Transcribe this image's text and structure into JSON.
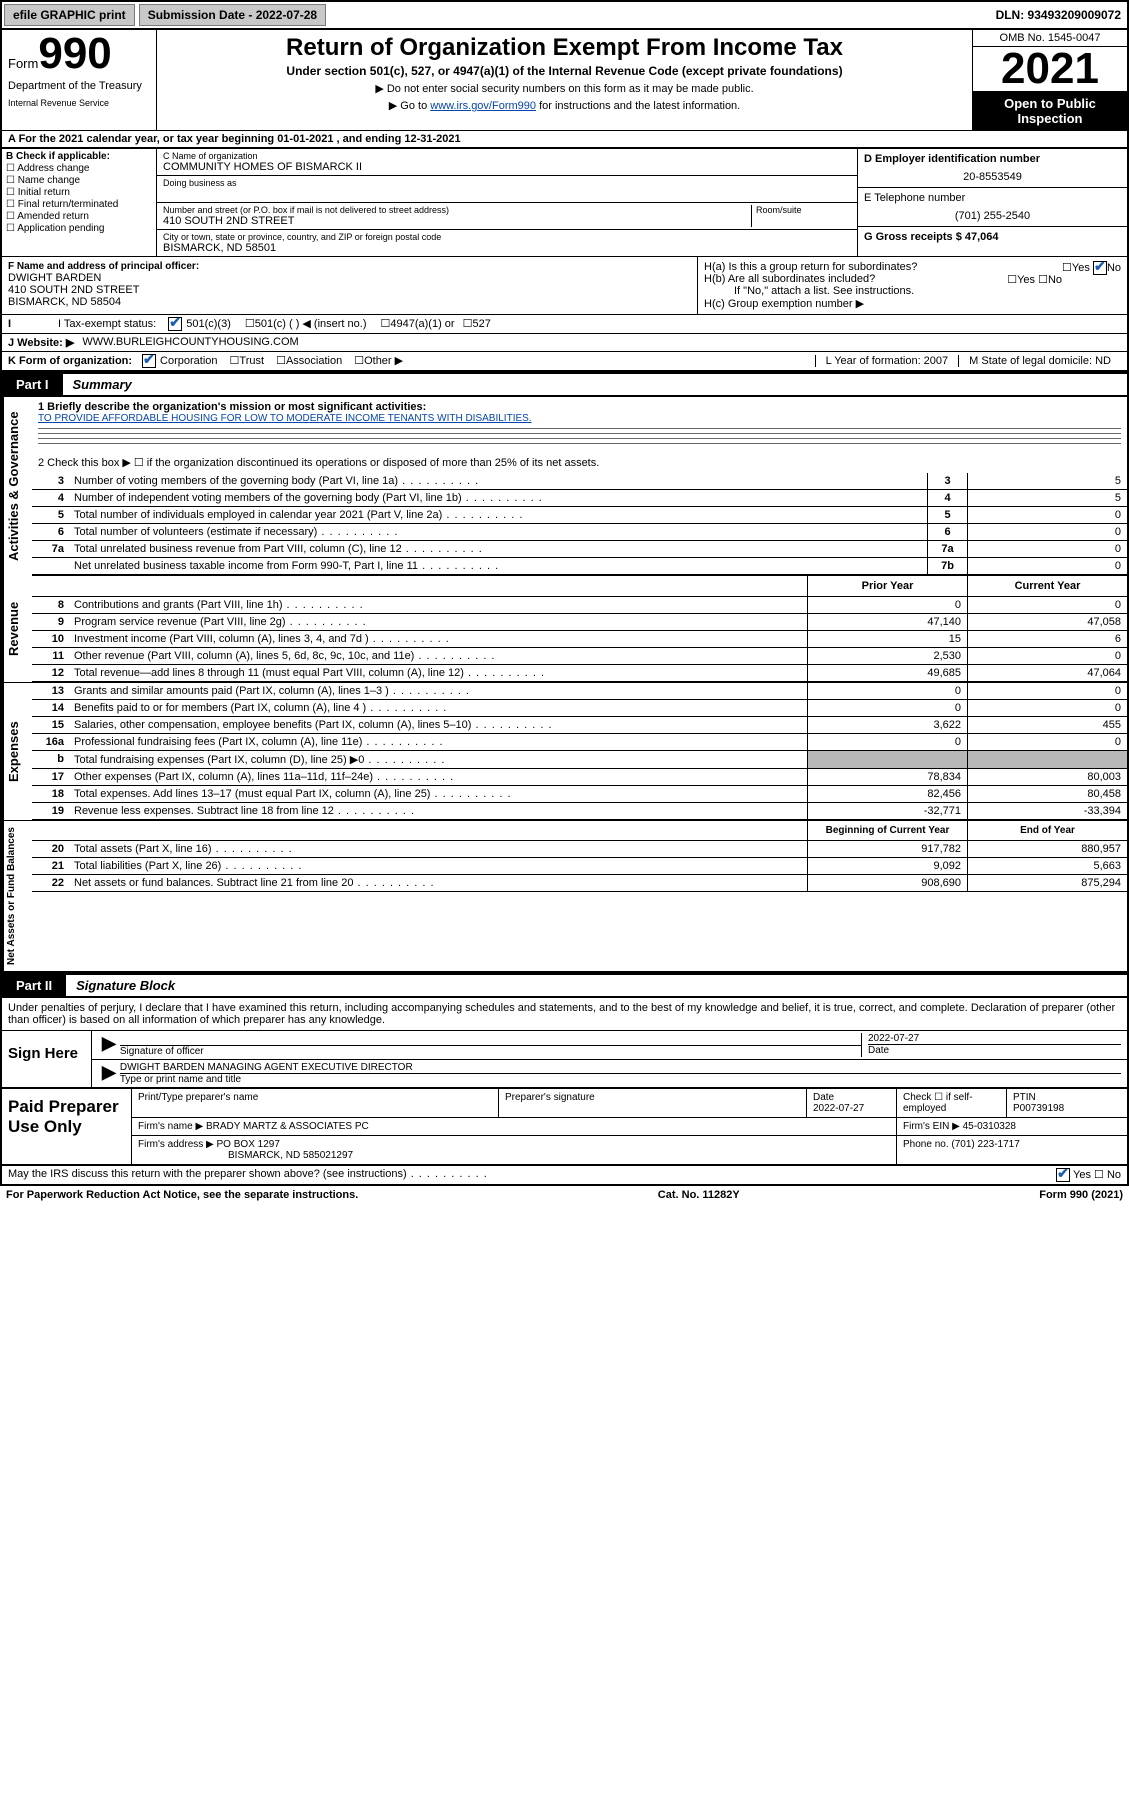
{
  "topbar": {
    "efile": "efile GRAPHIC print",
    "submission_label": "Submission Date - 2022-07-28",
    "dln_label": "DLN: 93493209009072"
  },
  "header": {
    "form_word": "Form",
    "form_number": "990",
    "title": "Return of Organization Exempt From Income Tax",
    "subtitle": "Under section 501(c), 527, or 4947(a)(1) of the Internal Revenue Code (except private foundations)",
    "instr1": "▶ Do not enter social security numbers on this form as it may be made public.",
    "instr2_prefix": "▶ Go to ",
    "instr2_link": "www.irs.gov/Form990",
    "instr2_suffix": " for instructions and the latest information.",
    "omb": "OMB No. 1545-0047",
    "year": "2021",
    "inspect1": "Open to Public",
    "inspect2": "Inspection",
    "dept1": "Department of the Treasury",
    "dept2": "Internal Revenue Service"
  },
  "row_a": "A For the 2021 calendar year, or tax year beginning 01-01-2021   , and ending 12-31-2021",
  "section_b": {
    "label": "B Check if applicable:",
    "checks": [
      "Address change",
      "Name change",
      "Initial return",
      "Final return/terminated",
      "Amended return",
      "Application pending"
    ],
    "name_label": "C Name of organization",
    "name": "COMMUNITY HOMES OF BISMARCK II",
    "dba_label": "Doing business as",
    "street_label": "Number and street (or P.O. box if mail is not delivered to street address)",
    "street": "410 SOUTH 2ND STREET",
    "room_label": "Room/suite",
    "city_label": "City or town, state or province, country, and ZIP or foreign postal code",
    "city": "BISMARCK, ND  58501"
  },
  "section_d": {
    "label": "D Employer identification number",
    "ein": "20-8553549"
  },
  "section_e": {
    "label": "E Telephone number",
    "phone": "(701) 255-2540"
  },
  "section_g": {
    "label": "G Gross receipts $ 47,064"
  },
  "section_f": {
    "label": "F  Name and address of principal officer:",
    "line1": "DWIGHT BARDEN",
    "line2": "410 SOUTH 2ND STREET",
    "line3": "BISMARCK, ND  58504"
  },
  "section_h": {
    "ha": "H(a)  Is this a group return for subordinates?",
    "hb": "H(b)  Are all subordinates included?",
    "hb_note": "If \"No,\" attach a list. See instructions.",
    "hc": "H(c)  Group exemption number ▶",
    "yes": "Yes",
    "no": "No"
  },
  "row_i": {
    "label": "I  Tax-exempt status:",
    "opts": [
      "501(c)(3)",
      "501(c) (  ) ◀ (insert no.)",
      "4947(a)(1) or",
      "527"
    ]
  },
  "row_j": {
    "label": "J  Website: ▶",
    "value": "WWW.BURLEIGHCOUNTYHOUSING.COM"
  },
  "row_k": {
    "label": "K Form of organization:",
    "opts": [
      "Corporation",
      "Trust",
      "Association",
      "Other ▶"
    ]
  },
  "row_l": {
    "label": "L Year of formation: 2007"
  },
  "row_m": {
    "label": "M State of legal domicile: ND"
  },
  "part1": {
    "tag": "Part I",
    "title": "Summary"
  },
  "mission": {
    "label": "1  Briefly describe the organization's mission or most significant activities:",
    "text": "TO PROVIDE AFFORDABLE HOUSING FOR LOW TO MODERATE INCOME TENANTS WITH DISABILITIES."
  },
  "line2": "2     Check this box ▶ ☐  if the organization discontinued its operations or disposed of more than 25% of its net assets.",
  "governance_rows": [
    {
      "n": "3",
      "d": "Number of voting members of the governing body (Part VI, line 1a)",
      "b": "3",
      "v": "5"
    },
    {
      "n": "4",
      "d": "Number of independent voting members of the governing body (Part VI, line 1b)",
      "b": "4",
      "v": "5"
    },
    {
      "n": "5",
      "d": "Total number of individuals employed in calendar year 2021 (Part V, line 2a)",
      "b": "5",
      "v": "0"
    },
    {
      "n": "6",
      "d": "Total number of volunteers (estimate if necessary)",
      "b": "6",
      "v": "0"
    },
    {
      "n": "7a",
      "d": "Total unrelated business revenue from Part VIII, column (C), line 12",
      "b": "7a",
      "v": "0"
    },
    {
      "n": "",
      "d": "Net unrelated business taxable income from Form 990-T, Part I, line 11",
      "b": "7b",
      "v": "0"
    }
  ],
  "col_headers": {
    "prior": "Prior Year",
    "current": "Current Year",
    "boy": "Beginning of Current Year",
    "eoy": "End of Year"
  },
  "revenue_rows": [
    {
      "n": "8",
      "d": "Contributions and grants (Part VIII, line 1h)",
      "p": "0",
      "c": "0"
    },
    {
      "n": "9",
      "d": "Program service revenue (Part VIII, line 2g)",
      "p": "47,140",
      "c": "47,058"
    },
    {
      "n": "10",
      "d": "Investment income (Part VIII, column (A), lines 3, 4, and 7d )",
      "p": "15",
      "c": "6"
    },
    {
      "n": "11",
      "d": "Other revenue (Part VIII, column (A), lines 5, 6d, 8c, 9c, 10c, and 11e)",
      "p": "2,530",
      "c": "0"
    },
    {
      "n": "12",
      "d": "Total revenue—add lines 8 through 11 (must equal Part VIII, column (A), line 12)",
      "p": "49,685",
      "c": "47,064"
    }
  ],
  "expense_rows": [
    {
      "n": "13",
      "d": "Grants and similar amounts paid (Part IX, column (A), lines 1–3 )",
      "p": "0",
      "c": "0"
    },
    {
      "n": "14",
      "d": "Benefits paid to or for members (Part IX, column (A), line 4 )",
      "p": "0",
      "c": "0"
    },
    {
      "n": "15",
      "d": "Salaries, other compensation, employee benefits (Part IX, column (A), lines 5–10)",
      "p": "3,622",
      "c": "455"
    },
    {
      "n": "16a",
      "d": "Professional fundraising fees (Part IX, column (A), line 11e)",
      "p": "0",
      "c": "0"
    },
    {
      "n": "b",
      "d": "Total fundraising expenses (Part IX, column (D), line 25) ▶0",
      "p": "",
      "c": "",
      "grey": true
    },
    {
      "n": "17",
      "d": "Other expenses (Part IX, column (A), lines 11a–11d, 11f–24e)",
      "p": "78,834",
      "c": "80,003"
    },
    {
      "n": "18",
      "d": "Total expenses. Add lines 13–17 (must equal Part IX, column (A), line 25)",
      "p": "82,456",
      "c": "80,458"
    },
    {
      "n": "19",
      "d": "Revenue less expenses. Subtract line 18 from line 12",
      "p": "-32,771",
      "c": "-33,394"
    }
  ],
  "net_rows": [
    {
      "n": "20",
      "d": "Total assets (Part X, line 16)",
      "p": "917,782",
      "c": "880,957"
    },
    {
      "n": "21",
      "d": "Total liabilities (Part X, line 26)",
      "p": "9,092",
      "c": "5,663"
    },
    {
      "n": "22",
      "d": "Net assets or fund balances. Subtract line 21 from line 20",
      "p": "908,690",
      "c": "875,294"
    }
  ],
  "part2": {
    "tag": "Part II",
    "title": "Signature Block"
  },
  "sig_para": "Under penalties of perjury, I declare that I have examined this return, including accompanying schedules and statements, and to the best of my knowledge and belief, it is true, correct, and complete. Declaration of preparer (other than officer) is based on all information of which preparer has any knowledge.",
  "sign": {
    "here": "Sign Here",
    "sig_label": "Signature of officer",
    "date": "2022-07-27",
    "date_label": "Date",
    "name": "DWIGHT BARDEN  MANAGING AGENT EXECUTIVE DIRECTOR",
    "name_label": "Type or print name and title"
  },
  "prep": {
    "title": "Paid Preparer Use Only",
    "col1": "Print/Type preparer's name",
    "col2": "Preparer's signature",
    "col3_label": "Date",
    "col3_val": "2022-07-27",
    "col4": "Check ☐ if self-employed",
    "col5_label": "PTIN",
    "col5_val": "P00739198",
    "firm_name_label": "Firm's name      ▶",
    "firm_name": "BRADY MARTZ & ASSOCIATES PC",
    "firm_ein_label": "Firm's EIN ▶",
    "firm_ein": "45-0310328",
    "firm_addr_label": "Firm's address ▶",
    "firm_addr1": "PO BOX 1297",
    "firm_addr2": "BISMARCK, ND  585021297",
    "phone_label": "Phone no.",
    "phone": "(701) 223-1717"
  },
  "may_irs": "May the IRS discuss this return with the preparer shown above? (see instructions)",
  "footer": {
    "left": "For Paperwork Reduction Act Notice, see the separate instructions.",
    "center": "Cat. No. 11282Y",
    "right": "Form 990 (2021)"
  }
}
